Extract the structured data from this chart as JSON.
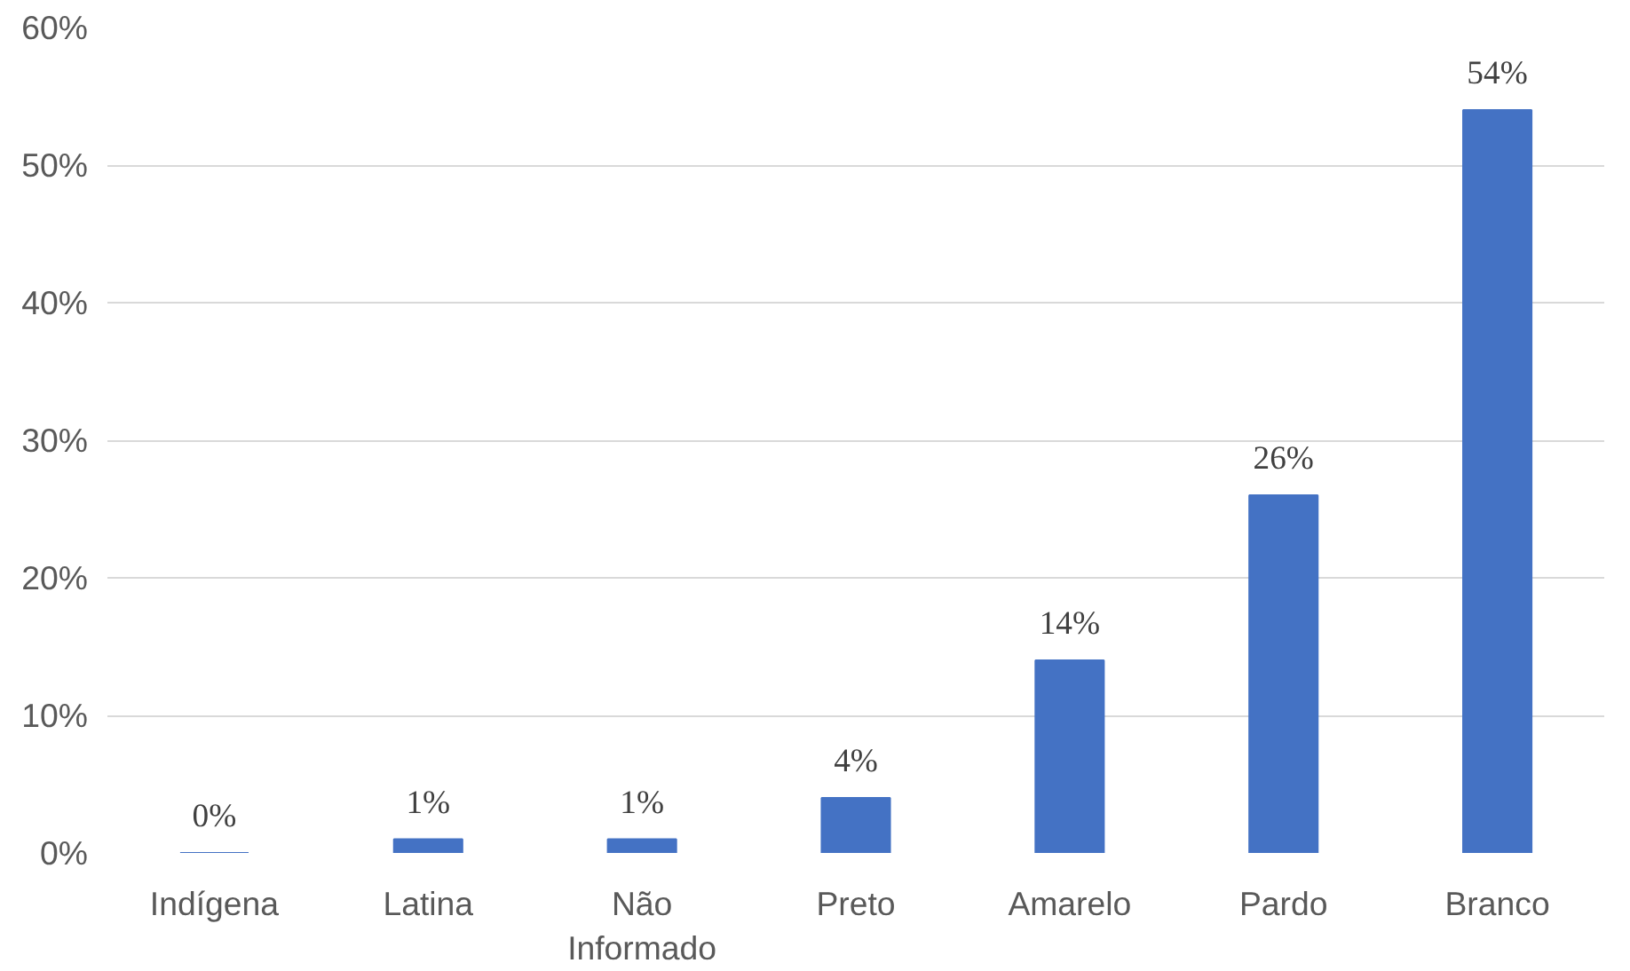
{
  "chart_data": {
    "type": "bar",
    "categories": [
      "Indígena",
      "Latina",
      "Não Informado",
      "Preto",
      "Amarelo",
      "Pardo",
      "Branco"
    ],
    "values": [
      0,
      1,
      1,
      4,
      14,
      26,
      54
    ],
    "value_labels": [
      "0%",
      "1%",
      "1%",
      "4%",
      "14%",
      "26%",
      "54%"
    ],
    "color": "#4472c4",
    "ylim": [
      0,
      60
    ],
    "yticks": [
      {
        "value": 0,
        "label": "0%"
      },
      {
        "value": 10,
        "label": "10%"
      },
      {
        "value": 20,
        "label": "20%"
      },
      {
        "value": 30,
        "label": "30%"
      },
      {
        "value": 40,
        "label": "40%"
      },
      {
        "value": 50,
        "label": "50%"
      },
      {
        "value": 60,
        "label": "60%"
      }
    ],
    "grid": "y"
  }
}
